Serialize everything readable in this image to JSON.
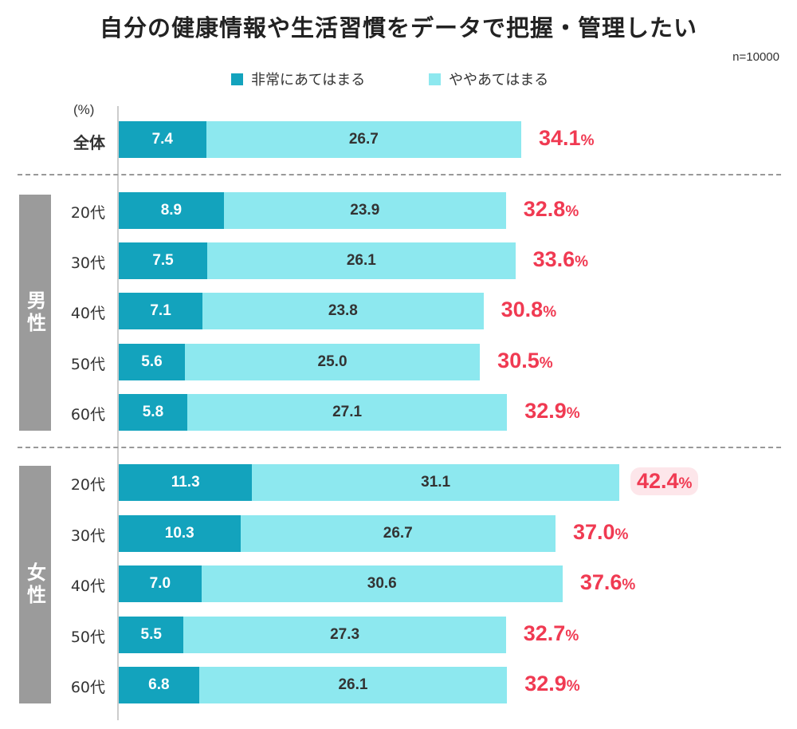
{
  "chart_data": {
    "type": "bar",
    "stacked": true,
    "orientation": "horizontal",
    "title": "自分の健康情報や生活習慣をデータで把握・管理したい",
    "sample_size": "n=10000",
    "unit_label": "(%)",
    "legend": [
      "非常にあてはまる",
      "ややあてはまる"
    ],
    "legend_placement": "top",
    "colors": [
      "#13a3bd",
      "#8de8ef"
    ],
    "total_color": "#f03a52",
    "groups": [
      {
        "label": "",
        "rows": [
          {
            "label": "全体",
            "values": [
              7.4,
              26.7
            ],
            "total": "34.1"
          }
        ]
      },
      {
        "label": "男性",
        "rows": [
          {
            "label": "20代",
            "values": [
              8.9,
              23.9
            ],
            "total": "32.8"
          },
          {
            "label": "30代",
            "values": [
              7.5,
              26.1
            ],
            "total": "33.6"
          },
          {
            "label": "40代",
            "values": [
              7.1,
              23.8
            ],
            "total": "30.8"
          },
          {
            "label": "50代",
            "values": [
              5.6,
              25.0
            ],
            "total": "30.5"
          },
          {
            "label": "60代",
            "values": [
              5.8,
              27.1
            ],
            "total": "32.9"
          }
        ]
      },
      {
        "label": "女性",
        "rows": [
          {
            "label": "20代",
            "values": [
              11.3,
              31.1
            ],
            "total": "42.4",
            "highlight": true
          },
          {
            "label": "30代",
            "values": [
              10.3,
              26.7
            ],
            "total": "37.0"
          },
          {
            "label": "40代",
            "values": [
              7.0,
              30.6
            ],
            "total": "37.6"
          },
          {
            "label": "50代",
            "values": [
              5.5,
              27.3
            ],
            "total": "32.7"
          },
          {
            "label": "60代",
            "values": [
              6.8,
              26.1
            ],
            "total": "32.9"
          }
        ]
      }
    ],
    "percent_sign": "%"
  }
}
